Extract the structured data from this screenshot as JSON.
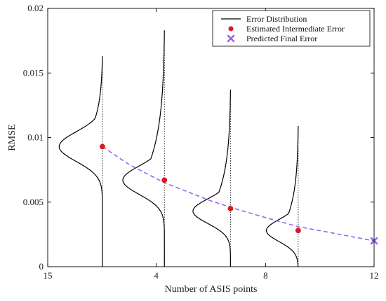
{
  "chart_data": {
    "type": "line",
    "title": "",
    "xlabel": "Number of ASIS points",
    "ylabel": "RMSE",
    "xlim": [
      0,
      4
    ],
    "ylim": [
      0,
      0.02
    ],
    "x_ticks": [
      {
        "pos": 0,
        "label": "15"
      },
      {
        "pos": 1.33,
        "label": "4"
      },
      {
        "pos": 2.67,
        "label": "8"
      },
      {
        "pos": 4,
        "label": "12"
      }
    ],
    "y_ticks": [
      {
        "value": 0,
        "label": "0"
      },
      {
        "value": 0.005,
        "label": "0.005"
      },
      {
        "value": 0.01,
        "label": "0.01"
      },
      {
        "value": 0.015,
        "label": "0.015"
      },
      {
        "value": 0.02,
        "label": "0.02"
      }
    ],
    "grid": false,
    "legend_position": "top-right",
    "series": [
      {
        "name": "Error Distribution",
        "kind": "distribution",
        "color": "#000000",
        "curves": [
          {
            "x": 0.67,
            "mean": 0.0093,
            "sigma": 0.00115,
            "width": 0.53,
            "top": 0.0163
          },
          {
            "x": 1.43,
            "mean": 0.0067,
            "sigma": 0.0011,
            "width": 0.51,
            "top": 0.0183
          },
          {
            "x": 2.24,
            "mean": 0.0043,
            "sigma": 0.00095,
            "width": 0.46,
            "top": 0.0137
          },
          {
            "x": 3.07,
            "mean": 0.0028,
            "sigma": 0.00085,
            "width": 0.39,
            "top": 0.0109
          }
        ]
      },
      {
        "name": "Estimated Intermediate Error",
        "kind": "points",
        "color": "#e8141c",
        "x": [
          0.67,
          1.43,
          2.24,
          3.07
        ],
        "y": [
          0.0093,
          0.0067,
          0.0045,
          0.0028
        ]
      },
      {
        "name": "Predicted Final Error",
        "kind": "points",
        "color": "#9966ee",
        "x": [
          4.0
        ],
        "y": [
          0.002
        ]
      }
    ],
    "trend_line": {
      "color": "#9966ee",
      "dash": true,
      "x": [
        0.67,
        1.0,
        1.43,
        2.0,
        2.24,
        2.67,
        3.07,
        3.5,
        4.0
      ],
      "y": [
        0.0093,
        0.0079,
        0.0065,
        0.0051,
        0.0046,
        0.0038,
        0.0031,
        0.0026,
        0.002
      ]
    }
  }
}
